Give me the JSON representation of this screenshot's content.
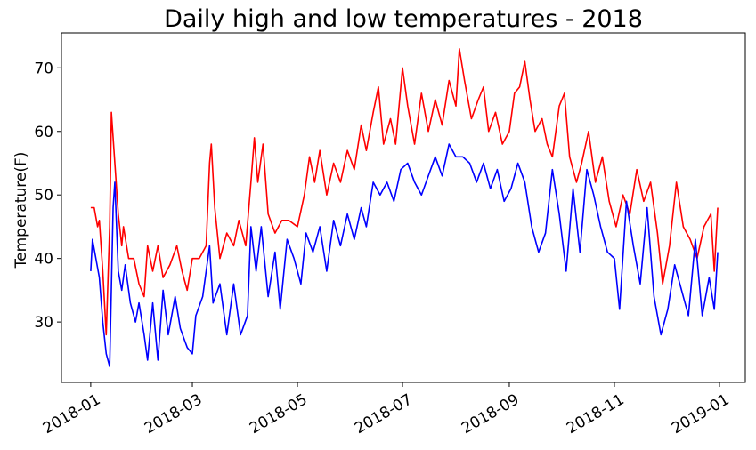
{
  "chart_data": {
    "type": "line",
    "title": "Daily high and low temperatures - 2018",
    "ylabel": "Temperature(F)",
    "xlabel": "",
    "x_start": "2018-01-01",
    "x_end": "2018-12-31",
    "xlim": [
      "2017-12-15",
      "2019-01-16"
    ],
    "ylim": [
      20.5,
      75.5
    ],
    "y_ticks": [
      30,
      40,
      50,
      60,
      70
    ],
    "x_ticks": [
      "2018-01",
      "2018-03",
      "2018-05",
      "2018-07",
      "2018-09",
      "2018-11",
      "2019-01"
    ],
    "grid": false,
    "legend": "none",
    "series": [
      {
        "key": "high",
        "color": "#ff0000",
        "keypoints": [
          [
            "2018-01-01",
            48
          ],
          [
            "2018-01-03",
            48
          ],
          [
            "2018-01-05",
            45
          ],
          [
            "2018-01-06",
            46
          ],
          [
            "2018-01-08",
            38
          ],
          [
            "2018-01-10",
            28
          ],
          [
            "2018-01-12",
            45
          ],
          [
            "2018-01-13",
            63
          ],
          [
            "2018-01-15",
            55
          ],
          [
            "2018-01-17",
            47
          ],
          [
            "2018-01-19",
            42
          ],
          [
            "2018-01-20",
            45
          ],
          [
            "2018-01-23",
            40
          ],
          [
            "2018-01-26",
            40
          ],
          [
            "2018-01-29",
            36
          ],
          [
            "2018-02-01",
            34
          ],
          [
            "2018-02-03",
            42
          ],
          [
            "2018-02-06",
            38
          ],
          [
            "2018-02-09",
            42
          ],
          [
            "2018-02-12",
            37
          ],
          [
            "2018-02-16",
            39
          ],
          [
            "2018-02-20",
            42
          ],
          [
            "2018-02-23",
            38
          ],
          [
            "2018-02-26",
            35
          ],
          [
            "2018-03-01",
            40
          ],
          [
            "2018-03-05",
            40
          ],
          [
            "2018-03-09",
            42
          ],
          [
            "2018-03-11",
            55
          ],
          [
            "2018-03-12",
            58
          ],
          [
            "2018-03-14",
            48
          ],
          [
            "2018-03-17",
            40
          ],
          [
            "2018-03-21",
            44
          ],
          [
            "2018-03-25",
            42
          ],
          [
            "2018-03-28",
            46
          ],
          [
            "2018-04-01",
            42
          ],
          [
            "2018-04-04",
            52
          ],
          [
            "2018-04-06",
            59
          ],
          [
            "2018-04-08",
            52
          ],
          [
            "2018-04-11",
            58
          ],
          [
            "2018-04-14",
            47
          ],
          [
            "2018-04-18",
            44
          ],
          [
            "2018-04-22",
            46
          ],
          [
            "2018-04-26",
            46
          ],
          [
            "2018-05-01",
            45
          ],
          [
            "2018-05-05",
            50
          ],
          [
            "2018-05-08",
            56
          ],
          [
            "2018-05-11",
            52
          ],
          [
            "2018-05-14",
            57
          ],
          [
            "2018-05-18",
            50
          ],
          [
            "2018-05-22",
            55
          ],
          [
            "2018-05-26",
            52
          ],
          [
            "2018-05-30",
            57
          ],
          [
            "2018-06-03",
            54
          ],
          [
            "2018-06-07",
            61
          ],
          [
            "2018-06-10",
            57
          ],
          [
            "2018-06-14",
            63
          ],
          [
            "2018-06-17",
            67
          ],
          [
            "2018-06-20",
            58
          ],
          [
            "2018-06-24",
            62
          ],
          [
            "2018-06-27",
            58
          ],
          [
            "2018-07-01",
            70
          ],
          [
            "2018-07-04",
            64
          ],
          [
            "2018-07-08",
            58
          ],
          [
            "2018-07-12",
            66
          ],
          [
            "2018-07-16",
            60
          ],
          [
            "2018-07-20",
            65
          ],
          [
            "2018-07-24",
            61
          ],
          [
            "2018-07-28",
            68
          ],
          [
            "2018-08-01",
            64
          ],
          [
            "2018-08-03",
            73
          ],
          [
            "2018-08-06",
            68
          ],
          [
            "2018-08-10",
            62
          ],
          [
            "2018-08-14",
            65
          ],
          [
            "2018-08-17",
            67
          ],
          [
            "2018-08-20",
            60
          ],
          [
            "2018-08-24",
            63
          ],
          [
            "2018-08-28",
            58
          ],
          [
            "2018-09-01",
            60
          ],
          [
            "2018-09-04",
            66
          ],
          [
            "2018-09-07",
            67
          ],
          [
            "2018-09-10",
            71
          ],
          [
            "2018-09-13",
            65
          ],
          [
            "2018-09-16",
            60
          ],
          [
            "2018-09-20",
            62
          ],
          [
            "2018-09-23",
            58
          ],
          [
            "2018-09-26",
            56
          ],
          [
            "2018-09-30",
            64
          ],
          [
            "2018-10-03",
            66
          ],
          [
            "2018-10-06",
            56
          ],
          [
            "2018-10-10",
            52
          ],
          [
            "2018-10-13",
            55
          ],
          [
            "2018-10-17",
            60
          ],
          [
            "2018-10-21",
            52
          ],
          [
            "2018-10-25",
            56
          ],
          [
            "2018-10-29",
            49
          ],
          [
            "2018-11-02",
            45
          ],
          [
            "2018-11-06",
            50
          ],
          [
            "2018-11-10",
            47
          ],
          [
            "2018-11-14",
            54
          ],
          [
            "2018-11-18",
            49
          ],
          [
            "2018-11-22",
            52
          ],
          [
            "2018-11-26",
            44
          ],
          [
            "2018-11-29",
            36
          ],
          [
            "2018-12-03",
            42
          ],
          [
            "2018-12-07",
            52
          ],
          [
            "2018-12-11",
            45
          ],
          [
            "2018-12-15",
            43
          ],
          [
            "2018-12-19",
            40
          ],
          [
            "2018-12-23",
            45
          ],
          [
            "2018-12-27",
            47
          ],
          [
            "2018-12-29",
            38
          ],
          [
            "2018-12-31",
            48
          ]
        ]
      },
      {
        "key": "low",
        "color": "#0000ff",
        "keypoints": [
          [
            "2018-01-01",
            38
          ],
          [
            "2018-01-02",
            43
          ],
          [
            "2018-01-04",
            40
          ],
          [
            "2018-01-06",
            37
          ],
          [
            "2018-01-08",
            30
          ],
          [
            "2018-01-10",
            25
          ],
          [
            "2018-01-12",
            23
          ],
          [
            "2018-01-14",
            48
          ],
          [
            "2018-01-15",
            52
          ],
          [
            "2018-01-17",
            38
          ],
          [
            "2018-01-19",
            35
          ],
          [
            "2018-01-21",
            39
          ],
          [
            "2018-01-24",
            33
          ],
          [
            "2018-01-27",
            30
          ],
          [
            "2018-01-29",
            33
          ],
          [
            "2018-02-01",
            28
          ],
          [
            "2018-02-03",
            24
          ],
          [
            "2018-02-06",
            33
          ],
          [
            "2018-02-09",
            24
          ],
          [
            "2018-02-12",
            35
          ],
          [
            "2018-02-15",
            28
          ],
          [
            "2018-02-19",
            34
          ],
          [
            "2018-02-22",
            29
          ],
          [
            "2018-02-26",
            26
          ],
          [
            "2018-03-01",
            25
          ],
          [
            "2018-03-03",
            31
          ],
          [
            "2018-03-07",
            34
          ],
          [
            "2018-03-11",
            42
          ],
          [
            "2018-03-13",
            33
          ],
          [
            "2018-03-17",
            36
          ],
          [
            "2018-03-21",
            28
          ],
          [
            "2018-03-25",
            36
          ],
          [
            "2018-03-29",
            28
          ],
          [
            "2018-04-02",
            31
          ],
          [
            "2018-04-04",
            45
          ],
          [
            "2018-04-07",
            38
          ],
          [
            "2018-04-10",
            45
          ],
          [
            "2018-04-14",
            34
          ],
          [
            "2018-04-18",
            41
          ],
          [
            "2018-04-21",
            32
          ],
          [
            "2018-04-25",
            43
          ],
          [
            "2018-04-29",
            40
          ],
          [
            "2018-05-03",
            36
          ],
          [
            "2018-05-06",
            44
          ],
          [
            "2018-05-10",
            41
          ],
          [
            "2018-05-14",
            45
          ],
          [
            "2018-05-18",
            38
          ],
          [
            "2018-05-22",
            46
          ],
          [
            "2018-05-26",
            42
          ],
          [
            "2018-05-30",
            47
          ],
          [
            "2018-06-03",
            43
          ],
          [
            "2018-06-07",
            48
          ],
          [
            "2018-06-10",
            45
          ],
          [
            "2018-06-14",
            52
          ],
          [
            "2018-06-18",
            50
          ],
          [
            "2018-06-22",
            52
          ],
          [
            "2018-06-26",
            49
          ],
          [
            "2018-06-30",
            54
          ],
          [
            "2018-07-04",
            55
          ],
          [
            "2018-07-08",
            52
          ],
          [
            "2018-07-12",
            50
          ],
          [
            "2018-07-16",
            53
          ],
          [
            "2018-07-20",
            56
          ],
          [
            "2018-07-24",
            53
          ],
          [
            "2018-07-28",
            58
          ],
          [
            "2018-08-01",
            56
          ],
          [
            "2018-08-05",
            56
          ],
          [
            "2018-08-09",
            55
          ],
          [
            "2018-08-13",
            52
          ],
          [
            "2018-08-17",
            55
          ],
          [
            "2018-08-21",
            51
          ],
          [
            "2018-08-25",
            54
          ],
          [
            "2018-08-29",
            49
          ],
          [
            "2018-09-02",
            51
          ],
          [
            "2018-09-06",
            55
          ],
          [
            "2018-09-10",
            52
          ],
          [
            "2018-09-14",
            45
          ],
          [
            "2018-09-18",
            41
          ],
          [
            "2018-09-22",
            44
          ],
          [
            "2018-09-26",
            54
          ],
          [
            "2018-09-30",
            47
          ],
          [
            "2018-10-04",
            38
          ],
          [
            "2018-10-08",
            51
          ],
          [
            "2018-10-12",
            41
          ],
          [
            "2018-10-16",
            54
          ],
          [
            "2018-10-20",
            50
          ],
          [
            "2018-10-24",
            45
          ],
          [
            "2018-10-28",
            41
          ],
          [
            "2018-11-01",
            40
          ],
          [
            "2018-11-04",
            32
          ],
          [
            "2018-11-08",
            49
          ],
          [
            "2018-11-12",
            42
          ],
          [
            "2018-11-16",
            36
          ],
          [
            "2018-11-20",
            48
          ],
          [
            "2018-11-24",
            34
          ],
          [
            "2018-11-28",
            28
          ],
          [
            "2018-12-02",
            32
          ],
          [
            "2018-12-06",
            39
          ],
          [
            "2018-12-10",
            35
          ],
          [
            "2018-12-14",
            31
          ],
          [
            "2018-12-18",
            43
          ],
          [
            "2018-12-22",
            31
          ],
          [
            "2018-12-26",
            37
          ],
          [
            "2018-12-29",
            32
          ],
          [
            "2018-12-31",
            41
          ]
        ]
      }
    ]
  }
}
